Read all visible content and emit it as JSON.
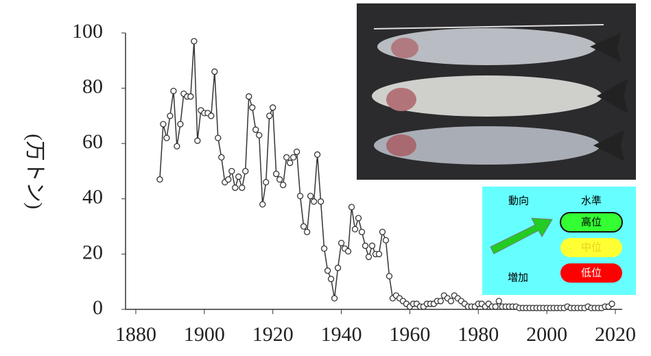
{
  "chart_data": {
    "type": "line",
    "y_label": "(万トン)",
    "x": [
      1887,
      1888,
      1889,
      1890,
      1891,
      1892,
      1893,
      1894,
      1895,
      1896,
      1897,
      1898,
      1899,
      1900,
      1901,
      1902,
      1903,
      1904,
      1905,
      1906,
      1907,
      1908,
      1909,
      1910,
      1911,
      1912,
      1913,
      1914,
      1915,
      1916,
      1917,
      1918,
      1919,
      1920,
      1921,
      1922,
      1923,
      1924,
      1925,
      1926,
      1927,
      1928,
      1929,
      1930,
      1931,
      1932,
      1933,
      1934,
      1935,
      1936,
      1937,
      1938,
      1939,
      1940,
      1941,
      1942,
      1943,
      1944,
      1945,
      1946,
      1947,
      1948,
      1949,
      1950,
      1951,
      1952,
      1953,
      1954,
      1955,
      1956,
      1957,
      1958,
      1959,
      1960,
      1961,
      1962,
      1963,
      1964,
      1965,
      1966,
      1967,
      1968,
      1969,
      1970,
      1971,
      1972,
      1973,
      1974,
      1975,
      1976,
      1977,
      1978,
      1979,
      1980,
      1981,
      1982,
      1983,
      1984,
      1985,
      1986,
      1987,
      1988,
      1989,
      1990,
      1991,
      1992,
      1993,
      1994,
      1995,
      1996,
      1997,
      1998,
      1999,
      2000,
      2001,
      2002,
      2003,
      2004,
      2005,
      2006,
      2007,
      2008,
      2009,
      2010,
      2011,
      2012,
      2013,
      2014,
      2015,
      2016,
      2017,
      2018,
      2019
    ],
    "y": [
      47,
      67,
      62,
      70,
      79,
      59,
      67,
      78,
      77,
      77,
      97,
      61,
      72,
      71,
      71,
      70,
      86,
      62,
      55,
      46,
      47,
      50,
      44,
      48,
      44,
      50,
      77,
      73,
      65,
      63,
      38,
      46,
      70,
      73,
      49,
      47,
      45,
      55,
      53,
      55,
      57,
      41,
      30,
      28,
      41,
      39,
      56,
      39,
      22,
      14,
      11,
      4,
      15,
      24,
      22,
      21,
      37,
      29,
      33,
      28,
      23,
      19,
      23,
      20,
      20,
      28,
      25,
      12,
      4,
      5,
      4,
      3,
      2,
      1,
      2,
      2,
      1,
      1,
      2,
      2,
      2,
      3,
      3,
      5,
      4,
      3,
      5,
      4,
      3,
      2,
      1,
      1,
      1,
      2,
      2,
      1,
      2,
      1,
      1,
      3,
      1,
      1,
      1,
      1,
      1,
      0.5,
      0.5,
      0.5,
      0.5,
      0.5,
      0.5,
      0.5,
      0.5,
      0.5,
      0.5,
      0.5,
      0.5,
      0.5,
      0.5,
      1,
      0.5,
      0.5,
      0.5,
      0.5,
      0.5,
      1,
      0.5,
      0.5,
      0.5,
      0.5,
      1,
      1,
      2
    ],
    "color": "#333333",
    "xlim": [
      1877,
      2022
    ],
    "xticks": [
      1880,
      1900,
      1920,
      1940,
      1960,
      1980,
      2000,
      2020
    ],
    "ylim": [
      0,
      100
    ],
    "yticks": [
      0,
      20,
      40,
      60,
      80,
      100
    ]
  },
  "status_panel": {
    "trend_title": "動向",
    "trend": "増加",
    "level_title": "水準",
    "levels": [
      "高位",
      "中位",
      "低位"
    ]
  }
}
